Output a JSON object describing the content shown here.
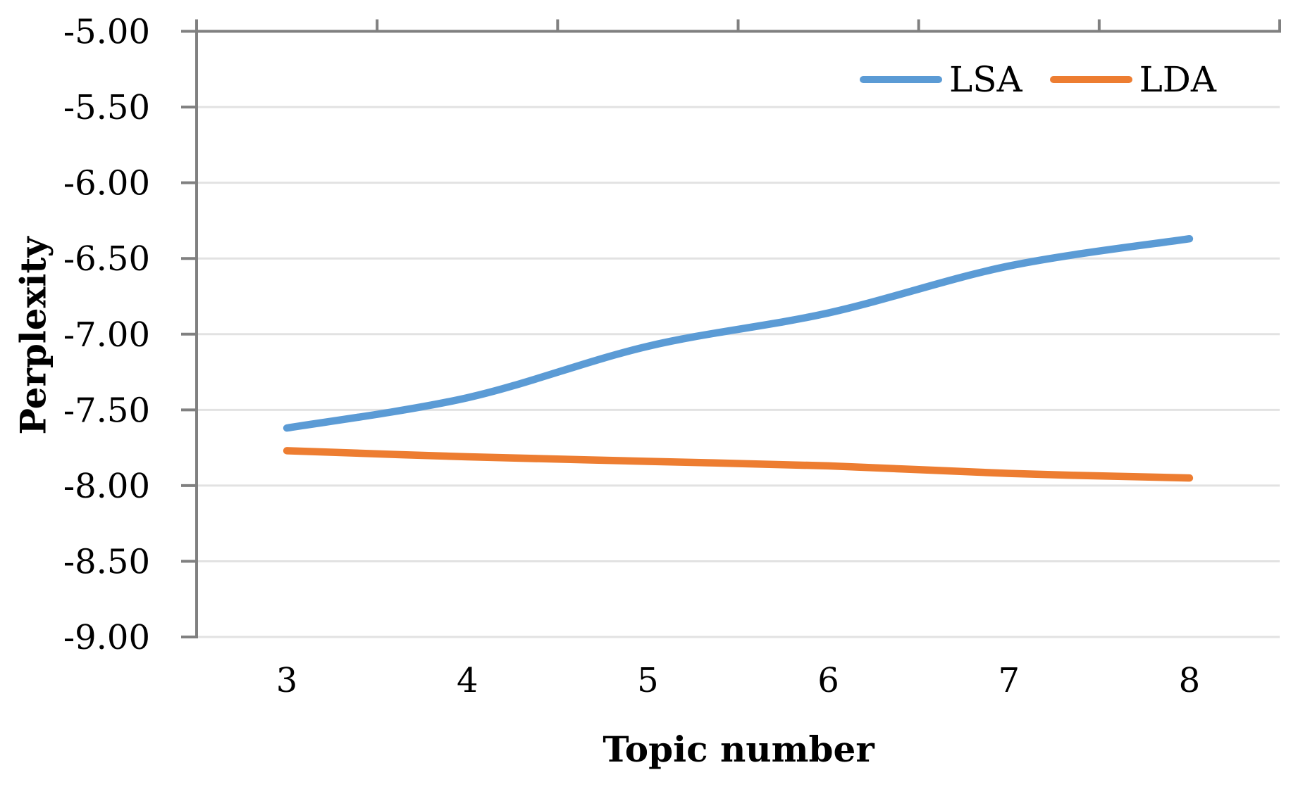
{
  "chart_data": {
    "type": "line",
    "title": "",
    "xlabel": "Topic number",
    "ylabel": "Perplexity",
    "x": [
      3,
      4,
      5,
      6,
      7,
      8
    ],
    "x_tick_labels": [
      "3",
      "4",
      "5",
      "6",
      "7",
      "8"
    ],
    "series": [
      {
        "name": "LSA",
        "color": "#5B9BD5",
        "values": [
          -7.62,
          -7.42,
          -7.08,
          -6.86,
          -6.55,
          -6.37
        ]
      },
      {
        "name": "LDA",
        "color": "#ED7D31",
        "values": [
          -7.77,
          -7.81,
          -7.84,
          -7.87,
          -7.92,
          -7.95
        ]
      }
    ],
    "y_axis": {
      "min": -9.0,
      "max": -5.0,
      "step": 0.5
    },
    "y_tick_values": [
      -5.0,
      -5.5,
      -6.0,
      -6.5,
      -7.0,
      -7.5,
      -8.0,
      -8.5,
      -9.0
    ],
    "y_tick_labels": [
      "-5.00",
      "-5.50",
      "-6.00",
      "-6.50",
      "-7.00",
      "-7.50",
      "-8.00",
      "-8.50",
      "-9.00"
    ],
    "legend": {
      "position": "top-right",
      "entries": [
        "LSA",
        "LDA"
      ]
    },
    "grid": true,
    "smoothed_lines": true,
    "colors": {
      "axis_line": "#808080",
      "gridline": "#E2E2E2",
      "text": "#000000",
      "background": "#FFFFFF"
    }
  }
}
